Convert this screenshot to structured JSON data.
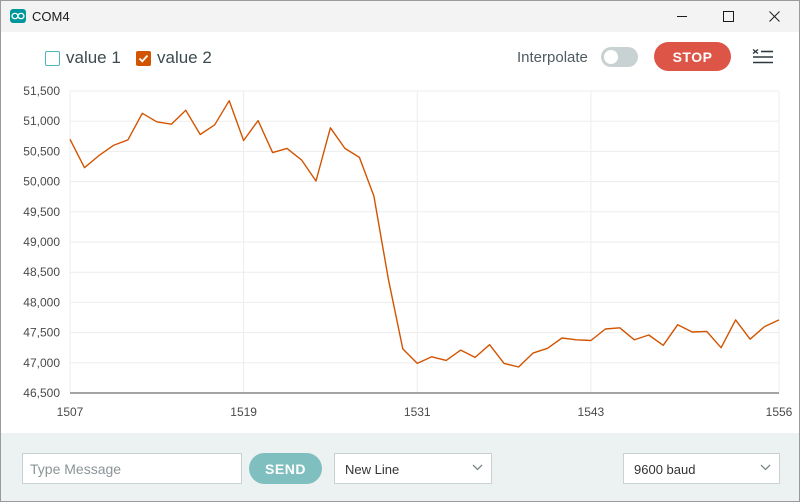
{
  "window": {
    "title": "COM4",
    "icon": "arduino-infinity-icon"
  },
  "toolbar": {
    "series": [
      {
        "label": "value 1",
        "checked": false,
        "color": "#4db7bb"
      },
      {
        "label": "value 2",
        "checked": true,
        "color": "#d35400"
      }
    ],
    "interpolate_label": "Interpolate",
    "interpolate_on": false,
    "stop_label": "STOP",
    "clear_icon": "clear-lines-icon"
  },
  "footer": {
    "message_placeholder": "Type Message",
    "message_value": "",
    "send_label": "SEND",
    "line_ending": "New Line",
    "baud": "9600 baud"
  },
  "colors": {
    "accent": "#00979c",
    "stop": "#dd5546",
    "send": "#7fbfbf",
    "series_2": "#d35400"
  },
  "chart_data": {
    "type": "line",
    "title": "",
    "xlabel": "",
    "ylabel": "",
    "xlim": [
      1507,
      1556
    ],
    "ylim": [
      46500,
      51500
    ],
    "x_ticks": [
      1507,
      1519,
      1531,
      1543,
      1556
    ],
    "y_ticks": [
      46500,
      47000,
      47500,
      48000,
      48500,
      49000,
      49500,
      50000,
      50500,
      51000,
      51500
    ],
    "y_tick_labels": [
      "46,500",
      "47,000",
      "47,500",
      "48,000",
      "48,500",
      "49,000",
      "49,500",
      "50,000",
      "50,500",
      "51,000",
      "51,500"
    ],
    "grid": true,
    "series": [
      {
        "name": "value 2",
        "color": "#d35400",
        "x": [
          1507,
          1508,
          1509,
          1510,
          1511,
          1512,
          1513,
          1514,
          1515,
          1516,
          1517,
          1518,
          1519,
          1520,
          1521,
          1522,
          1523,
          1524,
          1525,
          1526,
          1527,
          1528,
          1529,
          1530,
          1531,
          1532,
          1533,
          1534,
          1535,
          1536,
          1537,
          1538,
          1539,
          1540,
          1541,
          1542,
          1543,
          1544,
          1545,
          1546,
          1547,
          1548,
          1549,
          1550,
          1551,
          1552,
          1553,
          1554,
          1555,
          1556
        ],
        "values": [
          50700,
          50230,
          50430,
          50600,
          50690,
          51130,
          50990,
          50950,
          51180,
          50780,
          50940,
          51340,
          50680,
          51010,
          50480,
          50550,
          50360,
          50010,
          50890,
          50550,
          50400,
          49760,
          48390,
          47230,
          46990,
          47100,
          47040,
          47210,
          47090,
          47300,
          46990,
          46930,
          47160,
          47240,
          47410,
          47380,
          47370,
          47560,
          47580,
          47380,
          47460,
          47290,
          47630,
          47510,
          47520,
          47250,
          47710,
          47390,
          47600,
          47710
        ]
      }
    ]
  }
}
